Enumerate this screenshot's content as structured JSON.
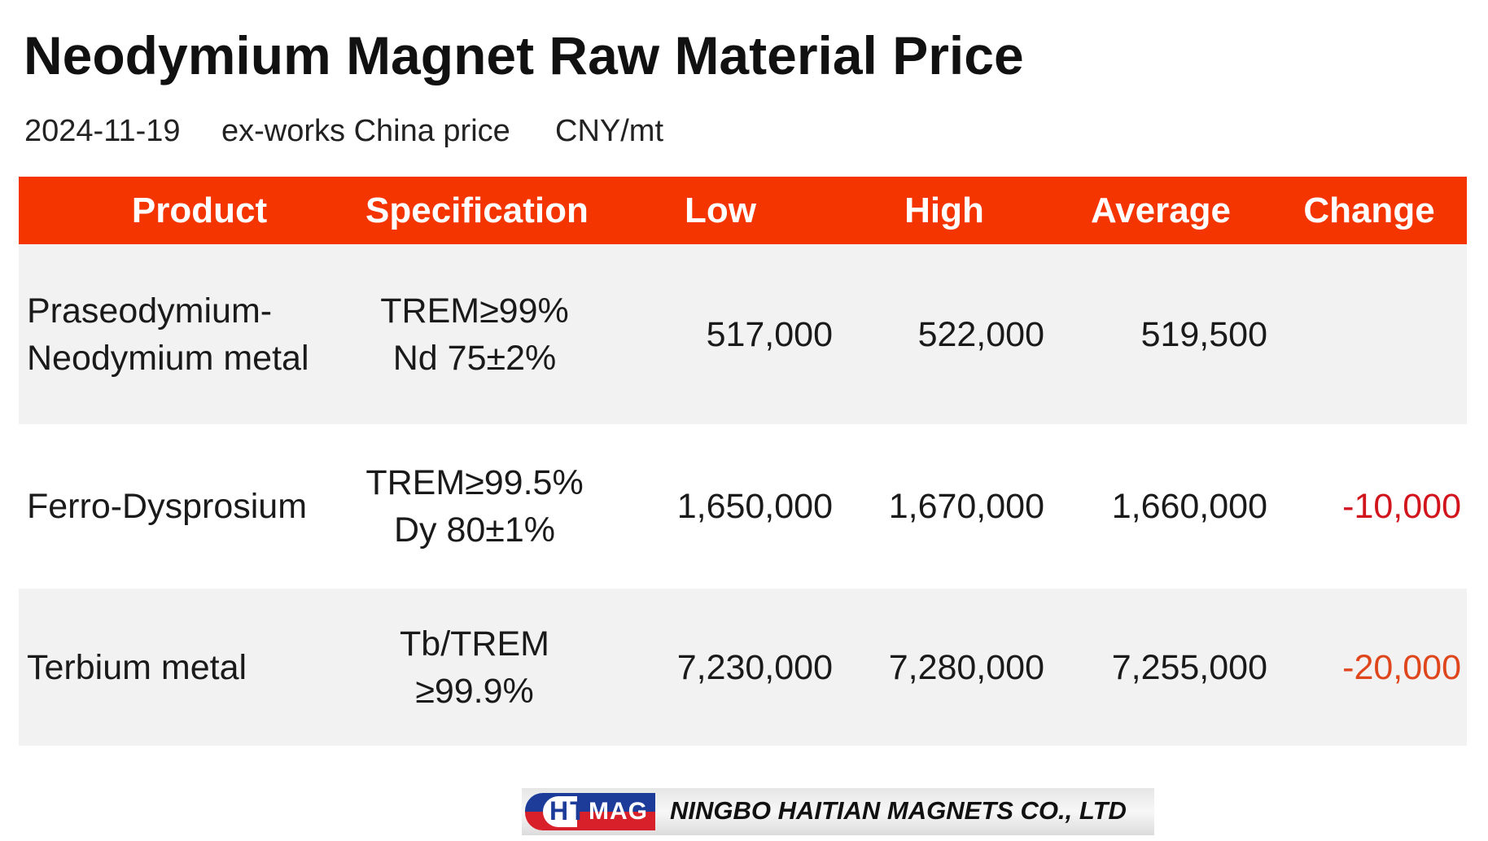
{
  "header": {
    "title": "Neodymium Magnet Raw Material Price",
    "date": "2024-11-19",
    "basis": "ex-works China price",
    "unit": "CNY/mt"
  },
  "table": {
    "columns": [
      "Product",
      "Specification",
      "Low",
      "High",
      "Average",
      "Change"
    ],
    "rows": [
      {
        "product": [
          "Praseodymium-",
          "Neodymium metal"
        ],
        "spec": [
          "TREM≥99%",
          "Nd 75±2%"
        ],
        "low": "517,000",
        "high": "522,000",
        "average": "519,500",
        "change": null
      },
      {
        "product": [
          "Ferro-Dysprosium"
        ],
        "spec": [
          "TREM≥99.5%",
          "Dy 80±1%"
        ],
        "low": "1,650,000",
        "high": "1,670,000",
        "average": "1,660,000",
        "change": "-10,000"
      },
      {
        "product": [
          "Terbium metal"
        ],
        "spec": [
          "Tb/TREM",
          "≥99.9%"
        ],
        "low": "7,230,000",
        "high": "7,280,000",
        "average": "7,255,000",
        "change": "-20,000"
      }
    ]
  },
  "footer": {
    "logo_left": "HT",
    "logo_right": "MAG",
    "company": "NINGBO HAITIAN MAGNETS CO., LTD"
  }
}
